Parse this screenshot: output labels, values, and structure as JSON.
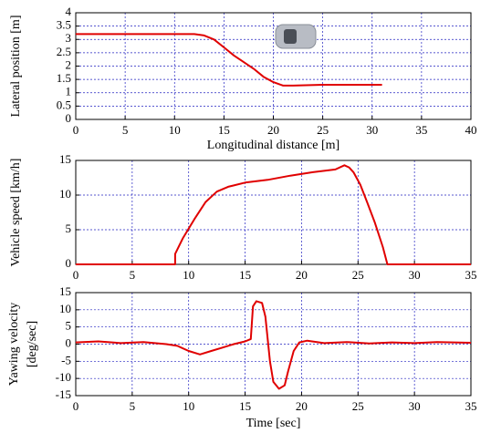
{
  "chart_data": [
    {
      "type": "line",
      "xlabel": "Longitudinal distance [m]",
      "ylabel": [
        "Lateral position [m]"
      ],
      "x": [
        0,
        5,
        10,
        12,
        13,
        14,
        15,
        16,
        17,
        18,
        19,
        20,
        21,
        22,
        25,
        31
      ],
      "values": [
        3.2,
        3.2,
        3.2,
        3.2,
        3.15,
        3.0,
        2.7,
        2.4,
        2.15,
        1.9,
        1.6,
        1.4,
        1.27,
        1.27,
        1.3,
        1.3
      ],
      "color": "#e00000",
      "xlim": [
        0,
        40
      ],
      "xticks": [
        0,
        5,
        10,
        15,
        20,
        25,
        30,
        35,
        40
      ],
      "ylim": [
        0,
        4
      ],
      "yticks": [
        0,
        0.5,
        1,
        1.5,
        2,
        2.5,
        3,
        3.5,
        4
      ],
      "grid": true
    },
    {
      "type": "line",
      "ylabel": [
        "Vehicle speed [km/h]"
      ],
      "x": [
        0,
        8.8,
        8.8,
        9.5,
        10.5,
        11.5,
        12.5,
        13.5,
        15,
        17,
        19,
        21,
        23,
        23.8,
        24.2,
        24.6,
        25.2,
        25.8,
        26.5,
        27.2,
        27.6,
        28,
        35
      ],
      "values": [
        0,
        0,
        1.5,
        3.8,
        6.5,
        9,
        10.5,
        11.2,
        11.8,
        12.2,
        12.8,
        13.3,
        13.7,
        14.3,
        14,
        13.3,
        11.5,
        9,
        6,
        2.5,
        0,
        0,
        0
      ],
      "color": "#e00000",
      "xlim": [
        0,
        35
      ],
      "xticks": [
        0,
        5,
        10,
        15,
        20,
        25,
        30,
        35
      ],
      "ylim": [
        0,
        15
      ],
      "yticks": [
        0,
        5,
        10,
        15
      ],
      "grid": true
    },
    {
      "type": "line",
      "xlabel": "Time [sec]",
      "ylabel": [
        "Yawing velocity",
        "[deg/sec]"
      ],
      "x": [
        0,
        2,
        4,
        6,
        8,
        9,
        10,
        11,
        12,
        13,
        14,
        15,
        15.5,
        15.7,
        16,
        16.5,
        16.8,
        17.2,
        17.5,
        18,
        18.5,
        18.8,
        19.3,
        19.8,
        20.5,
        22,
        24,
        26,
        28,
        30,
        32,
        35
      ],
      "values": [
        0.5,
        0.8,
        0.3,
        0.6,
        0,
        -0.5,
        -2,
        -3,
        -2,
        -1,
        0,
        0.8,
        1.5,
        11,
        12.5,
        12,
        8,
        -5,
        -11,
        -13,
        -12,
        -8,
        -2,
        0.5,
        1,
        0.3,
        0.6,
        0.2,
        0.5,
        0.3,
        0.6,
        0.4
      ],
      "color": "#e00000",
      "xlim": [
        0,
        35
      ],
      "xticks": [
        0,
        5,
        10,
        15,
        20,
        25,
        30,
        35
      ],
      "ylim": [
        -15,
        15
      ],
      "yticks": [
        -15,
        -10,
        -5,
        0,
        5,
        10,
        15
      ],
      "grid": true
    }
  ]
}
